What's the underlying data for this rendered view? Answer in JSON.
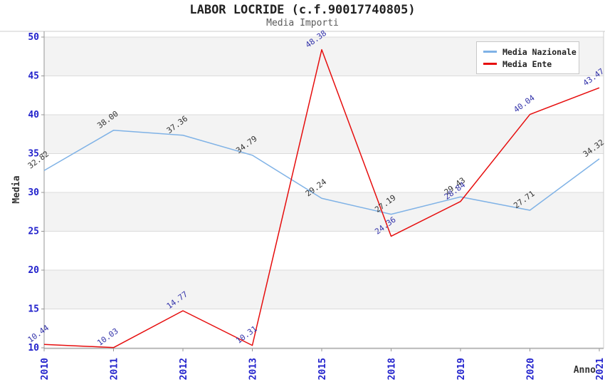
{
  "title": "LABOR LOCRIDE (c.f.90017740805)",
  "subtitle": "Media Importi",
  "chart_data": {
    "type": "line",
    "categories": [
      "2010",
      "2011",
      "2012",
      "2013",
      "2015",
      "2018",
      "2019",
      "2020",
      "2021"
    ],
    "series": [
      {
        "name": "Media Nazionale",
        "color": "#7FB2E6",
        "label_color": "#333333",
        "values": [
          32.82,
          38.0,
          37.36,
          34.79,
          29.24,
          27.19,
          29.43,
          27.71,
          34.32
        ]
      },
      {
        "name": "Media Ente",
        "color": "#E60D0D",
        "label_color": "#3333AA",
        "values": [
          10.44,
          10.03,
          14.77,
          10.31,
          48.38,
          24.36,
          28.84,
          40.04,
          43.47
        ]
      }
    ],
    "xlabel": "Anno",
    "ylabel": "Media",
    "ylim": [
      10,
      50
    ],
    "yticks": [
      10,
      15,
      20,
      25,
      30,
      35,
      40,
      45,
      50
    ],
    "grid": "horizontal-bands-on",
    "legend_position": "top-right",
    "colors": {
      "tick_label": "#2222CC",
      "band": "#F3F3F3",
      "gridline": "#DBDBDB",
      "axis": "#949494",
      "border": "#CCCCCC",
      "axis_title": "#333333"
    }
  }
}
